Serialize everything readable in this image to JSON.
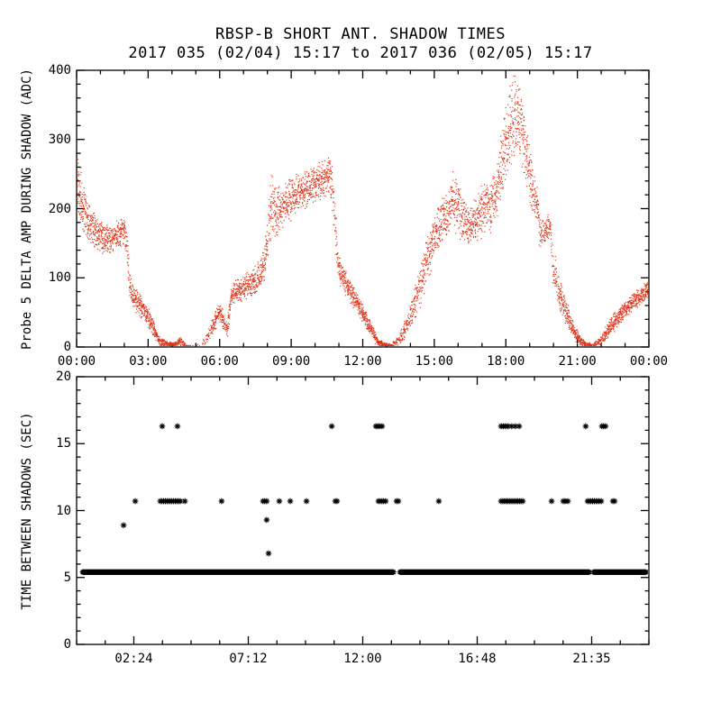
{
  "figure": {
    "background": "#ffffff",
    "frame_color": "#000000"
  },
  "chart_data": [
    {
      "type": "scatter",
      "name": "probe5-delta-amp-during-shadow",
      "title": "RBSP-B SHORT ANT. SHADOW TIMES",
      "subtitle": "2017 035 (02/04) 15:17 to 2017 036 (02/05) 15:17",
      "ylabel": "Probe 5 DELTA AMP DURING SHADOW (ADC)",
      "xlabel": "",
      "marker": "dot",
      "color": "#dd3318",
      "xlim": [
        0,
        24
      ],
      "ylim": [
        0,
        400
      ],
      "xticks": [
        0,
        3,
        6,
        9,
        12,
        15,
        18,
        21,
        24
      ],
      "xtick_labels": [
        "00:00",
        "03:00",
        "06:00",
        "09:00",
        "12:00",
        "15:00",
        "18:00",
        "21:00",
        "00:00"
      ],
      "xminor": 1,
      "yticks": [
        0,
        100,
        200,
        300,
        400
      ],
      "yminor": 20,
      "envelope_format": "[hour, adc_min, adc_max, relative_density]",
      "envelope": [
        [
          0,
          175,
          295,
          1
        ],
        [
          0.25,
          160,
          250,
          1
        ],
        [
          0.5,
          148,
          215,
          1
        ],
        [
          0.8,
          138,
          195,
          1
        ],
        [
          1.1,
          132,
          182,
          1
        ],
        [
          1.4,
          130,
          178,
          1
        ],
        [
          1.7,
          138,
          188,
          1
        ],
        [
          1.95,
          148,
          196,
          1
        ],
        [
          2.1,
          115,
          180,
          0.7
        ],
        [
          2.2,
          60,
          120,
          0.8
        ],
        [
          2.35,
          52,
          95,
          1
        ],
        [
          2.6,
          45,
          80,
          1
        ],
        [
          2.85,
          35,
          68,
          1
        ],
        [
          3.1,
          20,
          50,
          1
        ],
        [
          3.3,
          8,
          30,
          1
        ],
        [
          3.5,
          0,
          14,
          1
        ],
        [
          3.8,
          0,
          9,
          1
        ],
        [
          4.1,
          0,
          8,
          0.9
        ],
        [
          4.35,
          2,
          18,
          0.6
        ],
        [
          4.55,
          0,
          6,
          0.3
        ],
        [
          4.8,
          0,
          4,
          0.15
        ],
        [
          5.2,
          0,
          4,
          0.1
        ],
        [
          5.55,
          8,
          28,
          0.5
        ],
        [
          5.8,
          25,
          55,
          0.9
        ],
        [
          6,
          38,
          66,
          1
        ],
        [
          6.15,
          25,
          50,
          0.9
        ],
        [
          6.3,
          12,
          35,
          0.8
        ],
        [
          6.45,
          55,
          90,
          0.9
        ],
        [
          6.6,
          62,
          100,
          1
        ],
        [
          6.9,
          66,
          106,
          1
        ],
        [
          7.2,
          70,
          112,
          1
        ],
        [
          7.5,
          76,
          124,
          1
        ],
        [
          7.8,
          85,
          140,
          1
        ],
        [
          8,
          120,
          185,
          0.9
        ],
        [
          8.15,
          150,
          272,
          0.8
        ],
        [
          8.3,
          155,
          235,
          1
        ],
        [
          8.6,
          168,
          238,
          1
        ],
        [
          8.9,
          178,
          248,
          1
        ],
        [
          9.2,
          188,
          252,
          1
        ],
        [
          9.5,
          196,
          258,
          1
        ],
        [
          9.8,
          204,
          263,
          1
        ],
        [
          10.1,
          210,
          268,
          1
        ],
        [
          10.4,
          215,
          275,
          1
        ],
        [
          10.65,
          218,
          283,
          1
        ],
        [
          10.8,
          150,
          240,
          0.7
        ],
        [
          10.95,
          95,
          140,
          0.9
        ],
        [
          11.2,
          78,
          118,
          1
        ],
        [
          11.5,
          60,
          95,
          1
        ],
        [
          11.8,
          45,
          75,
          1
        ],
        [
          12.1,
          28,
          55,
          1
        ],
        [
          12.4,
          10,
          32,
          1
        ],
        [
          12.65,
          0,
          14,
          1
        ],
        [
          12.9,
          0,
          7,
          0.9
        ],
        [
          13.2,
          0,
          6,
          0.5
        ],
        [
          13.5,
          2,
          20,
          0.5
        ],
        [
          13.8,
          12,
          45,
          0.7
        ],
        [
          14.1,
          30,
          85,
          0.8
        ],
        [
          14.4,
          55,
          125,
          0.9
        ],
        [
          14.7,
          90,
          168,
          1
        ],
        [
          15,
          128,
          200,
          1
        ],
        [
          15.3,
          148,
          218,
          1
        ],
        [
          15.6,
          158,
          232,
          1
        ],
        [
          15.75,
          170,
          262,
          0.9
        ],
        [
          15.9,
          160,
          245,
          1
        ],
        [
          16.1,
          150,
          235,
          1
        ],
        [
          16.35,
          142,
          210,
          1
        ],
        [
          16.6,
          146,
          214,
          1
        ],
        [
          16.9,
          152,
          235,
          1
        ],
        [
          17.2,
          160,
          245,
          1
        ],
        [
          17.5,
          168,
          255,
          1
        ],
        [
          17.75,
          195,
          305,
          1
        ],
        [
          18,
          235,
          365,
          1
        ],
        [
          18.25,
          258,
          398,
          1
        ],
        [
          18.5,
          268,
          400,
          1
        ],
        [
          18.75,
          240,
          345,
          1
        ],
        [
          19,
          200,
          290,
          1
        ],
        [
          19.25,
          170,
          240,
          0.9
        ],
        [
          19.45,
          135,
          195,
          0.7
        ],
        [
          19.65,
          148,
          192,
          0.8
        ],
        [
          19.85,
          155,
          195,
          0.7
        ],
        [
          19.95,
          90,
          150,
          0.6
        ],
        [
          20.1,
          62,
          125,
          0.9
        ],
        [
          20.35,
          45,
          88,
          1
        ],
        [
          20.6,
          25,
          60,
          1
        ],
        [
          20.85,
          10,
          35,
          1
        ],
        [
          21.1,
          2,
          18,
          1
        ],
        [
          21.35,
          0,
          8,
          0.9
        ],
        [
          21.6,
          0,
          6,
          0.6
        ],
        [
          21.9,
          2,
          14,
          0.7
        ],
        [
          22.2,
          10,
          32,
          0.9
        ],
        [
          22.5,
          22,
          50,
          1
        ],
        [
          22.8,
          35,
          62,
          1
        ],
        [
          23.1,
          45,
          72,
          1
        ],
        [
          23.4,
          55,
          82,
          1
        ],
        [
          23.7,
          62,
          92,
          1
        ],
        [
          24,
          68,
          100,
          1
        ]
      ]
    },
    {
      "type": "scatter",
      "name": "time-between-shadows",
      "title": "",
      "subtitle": "",
      "ylabel": "TIME BETWEEN SHADOWS (SEC)",
      "xlabel": "",
      "marker": "asterisk",
      "color": "#000000",
      "xlim": [
        0,
        24
      ],
      "ylim": [
        0,
        20
      ],
      "xticks": [
        2.4,
        7.2,
        12,
        16.8,
        21.6
      ],
      "xtick_labels": [
        "02:24",
        "07:12",
        "12:00",
        "16:48",
        "21:35"
      ],
      "xminor": 1.2,
      "yticks": [
        0,
        5,
        10,
        15,
        20
      ],
      "yminor": 1,
      "band": {
        "y": 5.4,
        "step": 0.02,
        "segments": [
          [
            0.25,
            13.3
          ],
          [
            13.56,
            21.5
          ],
          [
            21.68,
            23.88
          ]
        ]
      },
      "rows": [
        {
          "y": 10.7,
          "points": [
            2.46,
            3.51,
            3.58,
            3.65,
            3.72,
            3.79,
            3.86,
            3.93,
            4.0,
            4.07,
            4.14,
            4.21,
            4.28,
            4.35,
            4.54,
            6.08,
            7.82,
            7.89,
            7.97,
            8.5,
            8.96,
            9.64,
            10.85,
            10.92,
            12.66,
            12.73,
            12.81,
            12.88,
            12.96,
            13.42,
            13.49,
            15.19,
            17.8,
            17.87,
            17.94,
            18.01,
            18.08,
            18.15,
            18.22,
            18.29,
            18.36,
            18.43,
            18.5,
            18.57,
            18.64,
            18.71,
            19.92,
            20.41,
            20.48,
            20.6,
            21.43,
            21.5,
            21.57,
            21.64,
            21.71,
            21.78,
            21.85,
            21.92,
            22.0,
            22.49,
            22.56
          ]
        },
        {
          "y": 16.3,
          "points": [
            3.59,
            4.23,
            10.7,
            12.55,
            12.62,
            12.69,
            12.81,
            17.8,
            17.9,
            18.0,
            18.1,
            18.25,
            18.4,
            18.56,
            21.35,
            22.03,
            22.1,
            22.18
          ]
        }
      ],
      "isolated": [
        [
          1.97,
          8.9
        ],
        [
          7.97,
          9.3
        ],
        [
          8.05,
          6.8
        ]
      ]
    }
  ]
}
